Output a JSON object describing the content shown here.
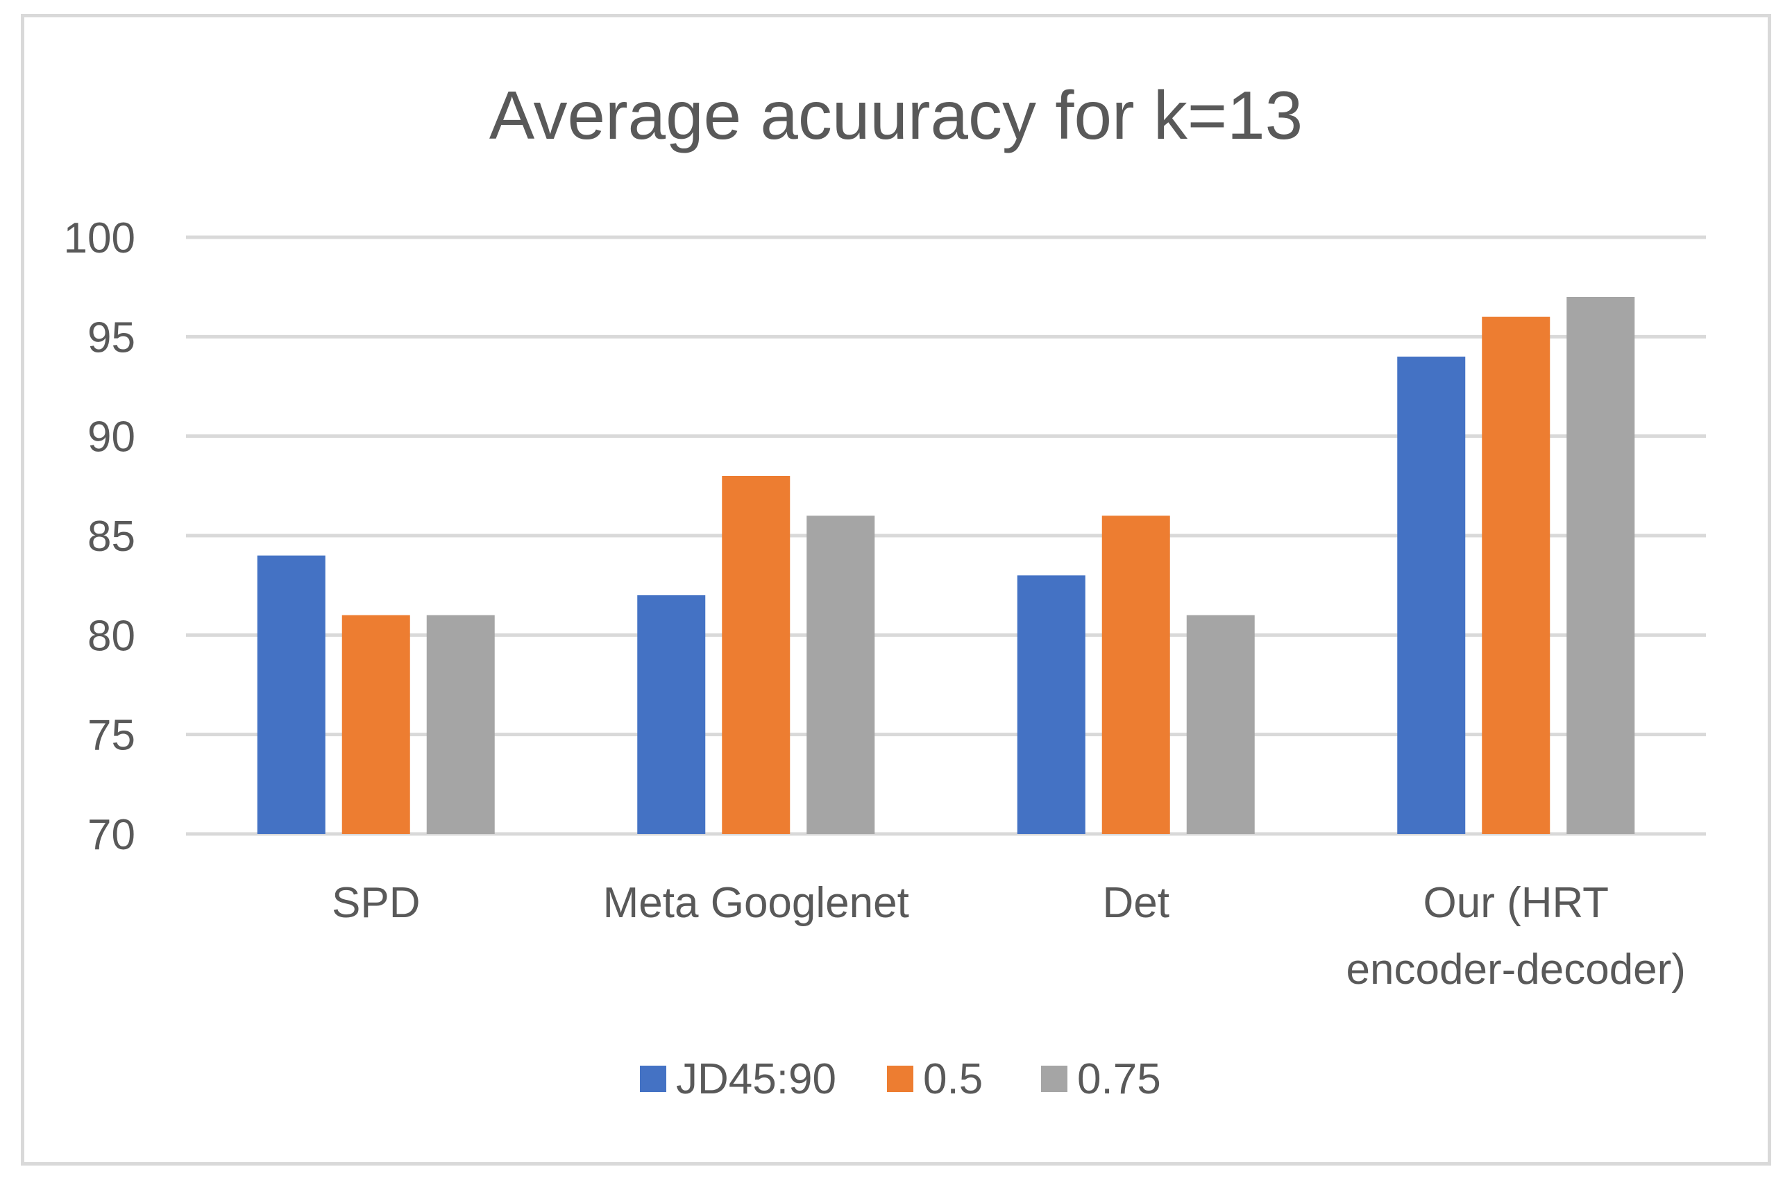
{
  "chart_data": {
    "type": "bar",
    "title": "Average acuuracy for k=13",
    "categories": [
      "SPD",
      "Meta Googlenet",
      "Det",
      "Our (HRT encoder-decoder)"
    ],
    "category_lines": [
      [
        "SPD"
      ],
      [
        "Meta Googlenet"
      ],
      [
        "Det"
      ],
      [
        "Our (HRT",
        "encoder-decoder)"
      ]
    ],
    "series": [
      {
        "name": "JD45:90",
        "color": "#4472c4",
        "values": [
          84,
          82,
          83,
          94
        ]
      },
      {
        "name": "0.5",
        "color": "#ed7d31",
        "values": [
          81,
          88,
          86,
          96
        ]
      },
      {
        "name": "0.75",
        "color": "#a5a5a5",
        "values": [
          81,
          86,
          81,
          97
        ]
      }
    ],
    "ylim": [
      70,
      100
    ],
    "yticks": [
      70,
      75,
      80,
      85,
      90,
      95,
      100
    ],
    "xlabel": "",
    "ylabel": "",
    "grid": true,
    "legend_position": "bottom"
  }
}
